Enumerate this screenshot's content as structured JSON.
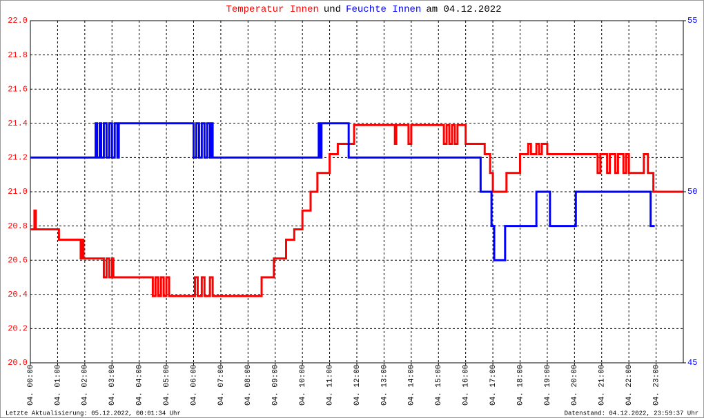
{
  "chart_data": {
    "type": "line",
    "title_parts": [
      {
        "text": "Temperatur Innen",
        "color": "#ff0000"
      },
      {
        "text": "und",
        "color": "#000000"
      },
      {
        "text": "Feuchte Innen",
        "color": "#0000ff"
      },
      {
        "text": "am 04.12.2022",
        "color": "#000000"
      }
    ],
    "xlim": [
      0,
      24
    ],
    "xticks": [
      {
        "value": 0,
        "label": "04. 00:00"
      },
      {
        "value": 1,
        "label": "04. 01:00"
      },
      {
        "value": 2,
        "label": "04. 02:00"
      },
      {
        "value": 3,
        "label": "04. 03:00"
      },
      {
        "value": 4,
        "label": "04. 04:00"
      },
      {
        "value": 5,
        "label": "04. 05:00"
      },
      {
        "value": 6,
        "label": "04. 06:00"
      },
      {
        "value": 7,
        "label": "04. 07:00"
      },
      {
        "value": 8,
        "label": "04. 08:00"
      },
      {
        "value": 9,
        "label": "04. 09:00"
      },
      {
        "value": 10,
        "label": "04. 10:00"
      },
      {
        "value": 11,
        "label": "04. 11:00"
      },
      {
        "value": 12,
        "label": "04. 12:00"
      },
      {
        "value": 13,
        "label": "04. 13:00"
      },
      {
        "value": 14,
        "label": "04. 14:00"
      },
      {
        "value": 15,
        "label": "04. 15:00"
      },
      {
        "value": 16,
        "label": "04. 16:00"
      },
      {
        "value": 17,
        "label": "04. 17:00"
      },
      {
        "value": 18,
        "label": "04. 18:00"
      },
      {
        "value": 19,
        "label": "04. 19:00"
      },
      {
        "value": 20,
        "label": "04. 20:00"
      },
      {
        "value": 21,
        "label": "04. 21:00"
      },
      {
        "value": 22,
        "label": "04. 22:00"
      },
      {
        "value": 23,
        "label": "04. 23:00"
      }
    ],
    "ylim": [
      20.0,
      22.0
    ],
    "yticks": [
      {
        "value": 20.0,
        "label": "20.0"
      },
      {
        "value": 20.2,
        "label": "20.2"
      },
      {
        "value": 20.4,
        "label": "20.4"
      },
      {
        "value": 20.6,
        "label": "20.6"
      },
      {
        "value": 20.8,
        "label": "20.8"
      },
      {
        "value": 21.0,
        "label": "21.0"
      },
      {
        "value": 21.2,
        "label": "21.2"
      },
      {
        "value": 21.4,
        "label": "21.4"
      },
      {
        "value": 21.6,
        "label": "21.6"
      },
      {
        "value": 21.8,
        "label": "21.8"
      },
      {
        "value": 22.0,
        "label": "22.0"
      }
    ],
    "y2lim": [
      45,
      55
    ],
    "y2ticks": [
      45,
      50,
      55
    ],
    "grid": true,
    "series": [
      {
        "name": "Temperatur Innen",
        "color": "#ff0000",
        "x": [
          0,
          0.15,
          0.2,
          1.05,
          1.85,
          1.9,
          1.95,
          2.7,
          2.8,
          2.9,
          3.0,
          3.05,
          4.5,
          4.6,
          4.7,
          4.8,
          4.9,
          5.0,
          5.1,
          6.05,
          6.15,
          6.3,
          6.4,
          6.6,
          6.7,
          8.5,
          8.95,
          9.4,
          9.7,
          10.0,
          10.3,
          10.55,
          11.0,
          11.3,
          11.9,
          13.4,
          13.45,
          13.9,
          14.0,
          15.2,
          15.3,
          15.4,
          15.5,
          15.6,
          15.7,
          16.0,
          16.7,
          16.9,
          17.0,
          17.5,
          18.0,
          18.3,
          18.4,
          18.6,
          18.7,
          18.8,
          19.0,
          20.85,
          20.95,
          21.2,
          21.3,
          21.5,
          21.6,
          21.8,
          21.9,
          22.0,
          22.55,
          22.7,
          22.9,
          24.0
        ],
        "values": [
          20.78,
          20.89,
          20.78,
          20.72,
          20.61,
          20.72,
          20.61,
          20.5,
          20.61,
          20.5,
          20.61,
          20.5,
          20.39,
          20.5,
          20.39,
          20.5,
          20.39,
          20.5,
          20.39,
          20.5,
          20.39,
          20.5,
          20.39,
          20.5,
          20.39,
          20.5,
          20.61,
          20.72,
          20.78,
          20.89,
          21.0,
          21.11,
          21.22,
          21.28,
          21.39,
          21.28,
          21.39,
          21.28,
          21.39,
          21.28,
          21.39,
          21.28,
          21.39,
          21.28,
          21.39,
          21.28,
          21.22,
          21.11,
          21.0,
          21.11,
          21.22,
          21.28,
          21.22,
          21.28,
          21.22,
          21.28,
          21.22,
          21.11,
          21.22,
          21.11,
          21.22,
          21.11,
          21.22,
          21.11,
          21.22,
          21.11,
          21.22,
          21.11,
          21.0,
          21.0
        ]
      },
      {
        "name": "Feuchte Innen",
        "color": "#0000ff",
        "axis": "y2",
        "x": [
          0,
          2.4,
          2.45,
          2.55,
          2.6,
          2.7,
          2.8,
          2.9,
          3.0,
          3.1,
          3.2,
          3.25,
          6.0,
          6.1,
          6.2,
          6.3,
          6.4,
          6.5,
          6.6,
          6.65,
          6.7,
          10.6,
          10.65,
          10.7,
          11.7,
          16.55,
          16.95,
          17.05,
          17.45,
          18.6,
          19.1,
          20.05,
          22.8,
          22.95
        ],
        "values": [
          51,
          52,
          51,
          52,
          51,
          52,
          51,
          52,
          51,
          52,
          51,
          52,
          51,
          52,
          51,
          52,
          51,
          52,
          51,
          52,
          51,
          52,
          51,
          52,
          51,
          50,
          49,
          48,
          49,
          50,
          49,
          50,
          49,
          49
        ]
      }
    ],
    "footer_left": "Letzte Aktualisierung: 05.12.2022, 00:01:34 Uhr",
    "footer_right": "Datenstand: 04.12.2022, 23:59:37 Uhr"
  }
}
